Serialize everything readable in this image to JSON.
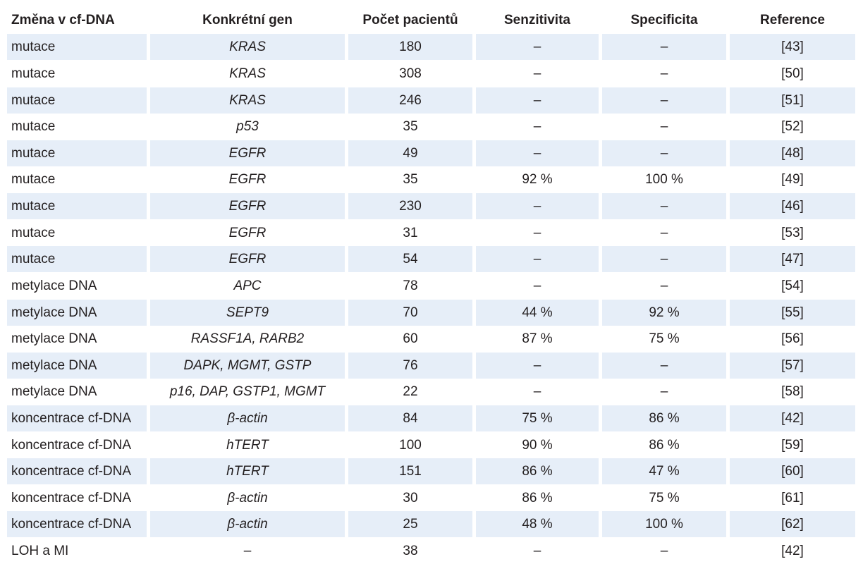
{
  "headers": [
    "Změna v cf-DNA",
    "Konkrétní gen",
    "Počet pacientů",
    "Senzitivita",
    "Specificita",
    "Reference"
  ],
  "rows": [
    [
      "mutace",
      "KRAS",
      "180",
      "–",
      "–",
      "[43]"
    ],
    [
      "mutace",
      "KRAS",
      "308",
      "–",
      "–",
      "[50]"
    ],
    [
      "mutace",
      "KRAS",
      "246",
      "–",
      "–",
      "[51]"
    ],
    [
      "mutace",
      "p53",
      "35",
      "–",
      "–",
      "[52]"
    ],
    [
      "mutace",
      "EGFR",
      "49",
      "–",
      "–",
      "[48]"
    ],
    [
      "mutace",
      "EGFR",
      "35",
      "92 %",
      "100 %",
      "[49]"
    ],
    [
      "mutace",
      "EGFR",
      "230",
      "–",
      "–",
      "[46]"
    ],
    [
      "mutace",
      "EGFR",
      "31",
      "–",
      "–",
      "[53]"
    ],
    [
      "mutace",
      "EGFR",
      "54",
      "–",
      "–",
      "[47]"
    ],
    [
      "metylace DNA",
      "APC",
      "78",
      "–",
      "–",
      "[54]"
    ],
    [
      "metylace DNA",
      "SEPT9",
      "70",
      "44 %",
      "92 %",
      "[55]"
    ],
    [
      "metylace DNA",
      "RASSF1A, RARB2",
      "60",
      "87 %",
      "75 %",
      "[56]"
    ],
    [
      "metylace DNA",
      "DAPK, MGMT, GSTP",
      "76",
      "–",
      "–",
      "[57]"
    ],
    [
      "metylace DNA",
      "p16, DAP, GSTP1, MGMT",
      "22",
      "–",
      "–",
      "[58]"
    ],
    [
      "koncentrace cf-DNA",
      "β-actin",
      "84",
      "75 %",
      "86 %",
      "[42]"
    ],
    [
      "koncentrace cf-DNA",
      "hTERT",
      "100",
      "90 %",
      "86 %",
      "[59]"
    ],
    [
      "koncentrace cf-DNA",
      "hTERT",
      "151",
      "86 %",
      "47 %",
      "[60]"
    ],
    [
      "koncentrace cf-DNA",
      "β-actin",
      "30",
      "86 %",
      "75 %",
      "[61]"
    ],
    [
      "koncentrace cf-DNA",
      "β-actin",
      "25",
      "48 %",
      "100 %",
      "[62]"
    ],
    [
      "LOH a MI",
      "–",
      "38",
      "–",
      "–",
      "[42]"
    ]
  ],
  "colors": {
    "row_shade": "#e6eef8",
    "text": "#231f20"
  }
}
